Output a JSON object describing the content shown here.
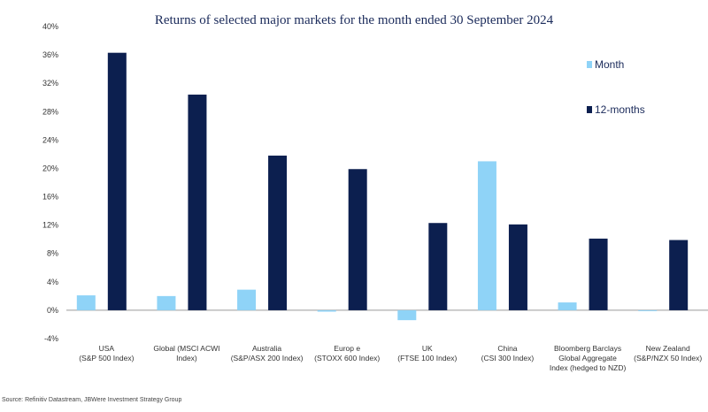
{
  "chart_data": {
    "type": "bar",
    "title": "Returns of selected major markets for the month ended 30 September 2024",
    "xlabel": "",
    "ylabel": "",
    "ylim": [
      -4,
      40
    ],
    "yticks": [
      "-4%",
      "0%",
      "4%",
      "8%",
      "12%",
      "16%",
      "20%",
      "24%",
      "28%",
      "32%",
      "36%",
      "40%"
    ],
    "ytick_values": [
      -4,
      0,
      4,
      8,
      12,
      16,
      20,
      24,
      28,
      32,
      36,
      40
    ],
    "categories": [
      [
        "USA",
        "(S&P 500 Index)"
      ],
      [
        "Global (MSCI ACWI",
        "Index)"
      ],
      [
        "Australia",
        "(S&P/ASX 200 Index)"
      ],
      [
        "Europ e",
        "(STOXX 600 Index)"
      ],
      [
        "UK",
        "(FTSE 100 Index)"
      ],
      [
        "China",
        "(CSI 300 Index)"
      ],
      [
        "Bloomberg Barclays",
        "Global Aggregate",
        "Index (hedged to NZD)"
      ],
      [
        "New Zealand",
        "(S&P/NZX 50 Index)"
      ]
    ],
    "series": [
      {
        "name": "Month",
        "color": "#8fd3f7",
        "values": [
          2.1,
          2.0,
          2.9,
          -0.2,
          -1.4,
          21.0,
          1.1,
          -0.1
        ]
      },
      {
        "name": "12-months",
        "color": "#0c1f4f",
        "values": [
          36.3,
          30.4,
          21.8,
          19.9,
          12.3,
          12.1,
          10.1,
          9.9
        ]
      }
    ],
    "legend_position": "top-right",
    "grid": false
  },
  "source": "Source: Refinitiv Datastream, JBWere Investment Strategy Group"
}
